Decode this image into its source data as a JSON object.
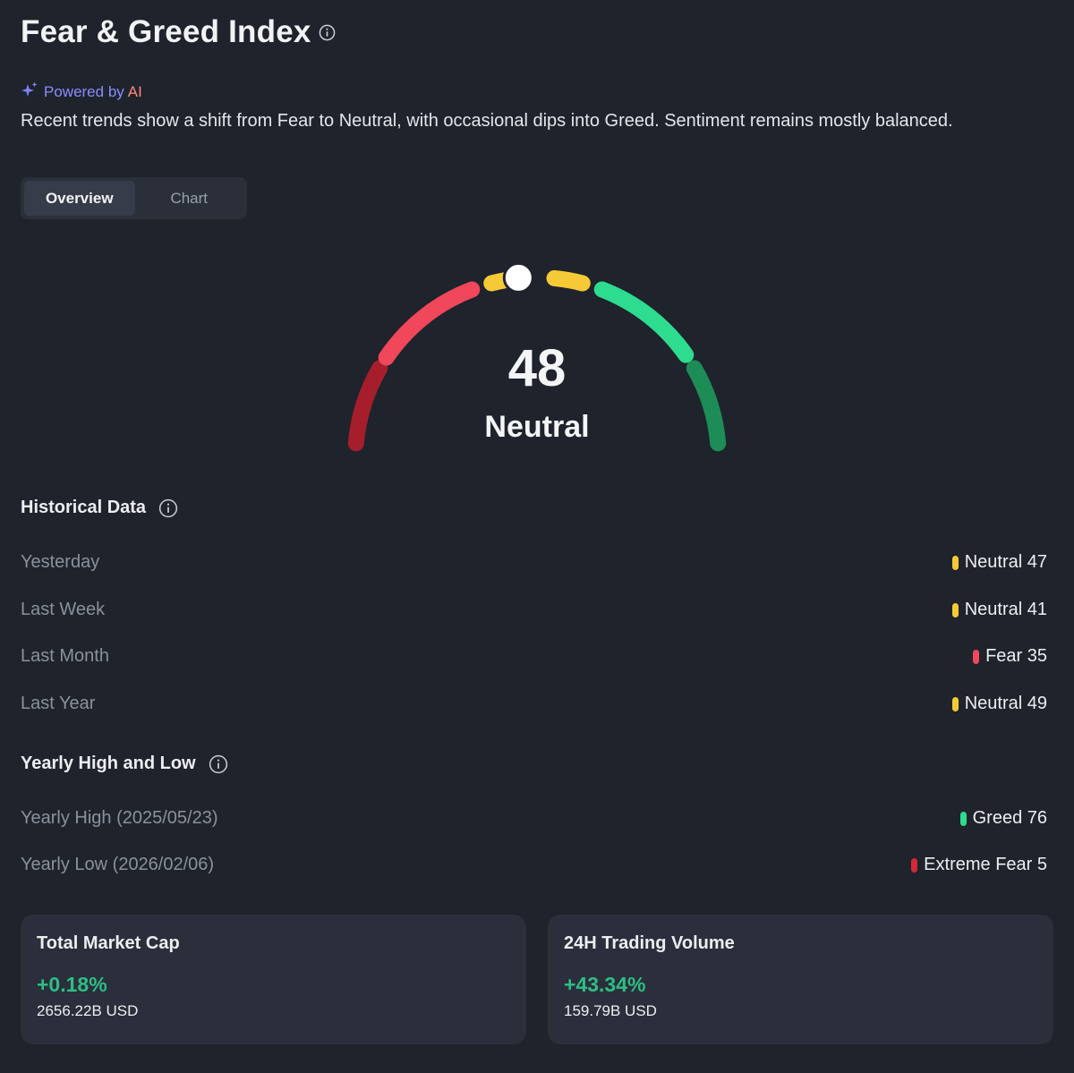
{
  "header": {
    "title": "Fear & Greed Index"
  },
  "ai": {
    "powered_by": "Powered by",
    "ai_word": "AI",
    "summary": "Recent trends show a shift from Fear to Neutral, with occasional dips into Greed. Sentiment remains mostly balanced."
  },
  "tabs": [
    {
      "label": "Overview",
      "active": true
    },
    {
      "label": "Chart",
      "active": false
    }
  ],
  "gauge": {
    "value": "48",
    "label": "Neutral",
    "level": 48,
    "segment_colors": [
      "#a61e2c",
      "#f0475a",
      "#f6c936",
      "#f6c936",
      "#2ddc8e",
      "#1e8c57"
    ]
  },
  "historical": {
    "title": "Historical Data",
    "rows": [
      {
        "label": "Yesterday",
        "value": "Neutral 47",
        "color": "#f6c936"
      },
      {
        "label": "Last Week",
        "value": "Neutral 41",
        "color": "#f6c936"
      },
      {
        "label": "Last Month",
        "value": "Fear 35",
        "color": "#f0475a"
      },
      {
        "label": "Last Year",
        "value": "Neutral 49",
        "color": "#f6c936"
      }
    ]
  },
  "yearly": {
    "title": "Yearly High and Low",
    "rows": [
      {
        "label": "Yearly High (2025/05/23)",
        "value": "Greed 76",
        "color": "#2ddc8e"
      },
      {
        "label": "Yearly Low (2026/02/06)",
        "value": "Extreme Fear 5",
        "color": "#d12a36"
      }
    ]
  },
  "cards": [
    {
      "title": "Total Market Cap",
      "change": "+0.18%",
      "amount": "2656.22B USD"
    },
    {
      "title": "24H Trading Volume",
      "change": "+43.34%",
      "amount": "159.79B USD"
    }
  ],
  "colors": {
    "background": "#1f232c",
    "positive": "#2ebd85"
  }
}
